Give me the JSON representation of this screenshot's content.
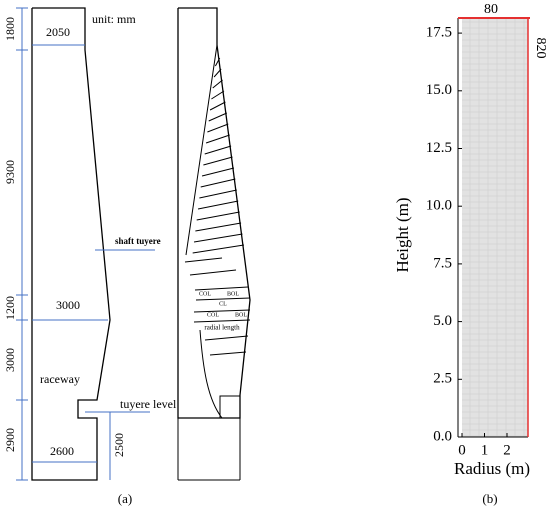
{
  "panel_a": {
    "unit": "unit: mm",
    "vertical_dims": [
      "1800",
      "9300",
      "1200",
      "3000",
      "2900"
    ],
    "horizontal_dims": [
      "2050",
      "3000",
      "2600"
    ],
    "hearth_dim": "2500",
    "shaft_tuyere": "shaft tuyere",
    "raceway": "raceway",
    "tuyere_level": "tuyere  level",
    "layer_labels": [
      "COL",
      "BOL",
      "CL",
      "COL",
      "BOL",
      "radial length"
    ],
    "caption": "(a)"
  },
  "panel_b": {
    "top_label": "80",
    "side_label": "820",
    "y_axis_label": "Height (m)",
    "x_axis_label": "Radius (m)",
    "yticks": [
      "0.0",
      "2.5",
      "5.0",
      "7.5",
      "10.0",
      "12.5",
      "15.0",
      "17.5"
    ],
    "xticks": [
      "0",
      "1",
      "2"
    ],
    "caption": "(b)"
  }
}
